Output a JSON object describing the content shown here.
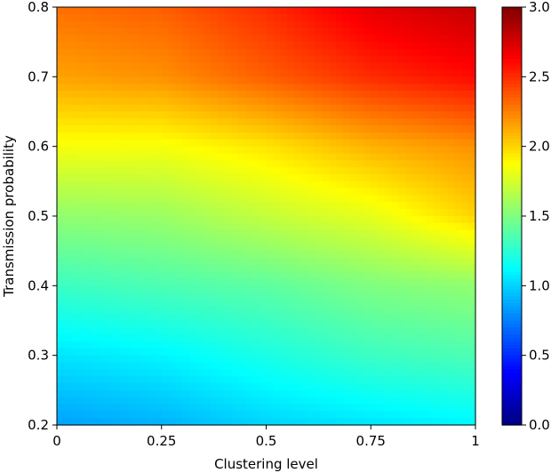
{
  "chart_data": {
    "type": "heatmap",
    "title": "",
    "xlabel": "Clustering level",
    "ylabel": "Transmission probability",
    "xlim": [
      0,
      1
    ],
    "ylim": [
      0.2,
      0.8
    ],
    "x_ticks": [
      {
        "value": 0,
        "label": "0"
      },
      {
        "value": 0.25,
        "label": "0.25"
      },
      {
        "value": 0.5,
        "label": "0.5"
      },
      {
        "value": 0.75,
        "label": "0.75"
      },
      {
        "value": 1,
        "label": "1"
      }
    ],
    "y_ticks": [
      {
        "value": 0.2,
        "label": "0.2"
      },
      {
        "value": 0.3,
        "label": "0.3"
      },
      {
        "value": 0.4,
        "label": "0.4"
      },
      {
        "value": 0.5,
        "label": "0.5"
      },
      {
        "value": 0.6,
        "label": "0.6"
      },
      {
        "value": 0.7,
        "label": "0.7"
      },
      {
        "value": 0.8,
        "label": "0.8"
      }
    ],
    "colorbar": {
      "colormap": "jet",
      "range": [
        0.0,
        3.0
      ],
      "ticks": [
        {
          "value": 0.0,
          "label": "0.0"
        },
        {
          "value": 0.5,
          "label": "0.5"
        },
        {
          "value": 1.0,
          "label": "1.0"
        },
        {
          "value": 1.5,
          "label": "1.5"
        },
        {
          "value": 2.0,
          "label": "2.0"
        },
        {
          "value": 2.5,
          "label": "2.5"
        },
        {
          "value": 3.0,
          "label": "3.0"
        }
      ]
    },
    "grid": false,
    "x": [
      0,
      0.25,
      0.5,
      0.75,
      1
    ],
    "y": [
      0.2,
      0.3,
      0.4,
      0.5,
      0.6,
      0.7,
      0.8
    ],
    "z": [
      [
        0.85,
        0.9,
        1.0,
        1.05,
        1.1
      ],
      [
        1.05,
        1.1,
        1.2,
        1.3,
        1.35
      ],
      [
        1.3,
        1.35,
        1.4,
        1.5,
        1.55
      ],
      [
        1.55,
        1.58,
        1.7,
        1.8,
        2.0
      ],
      [
        1.85,
        1.85,
        1.95,
        2.1,
        2.2
      ],
      [
        2.15,
        2.2,
        2.35,
        2.5,
        2.6
      ],
      [
        2.3,
        2.35,
        2.5,
        2.7,
        2.8
      ]
    ]
  }
}
